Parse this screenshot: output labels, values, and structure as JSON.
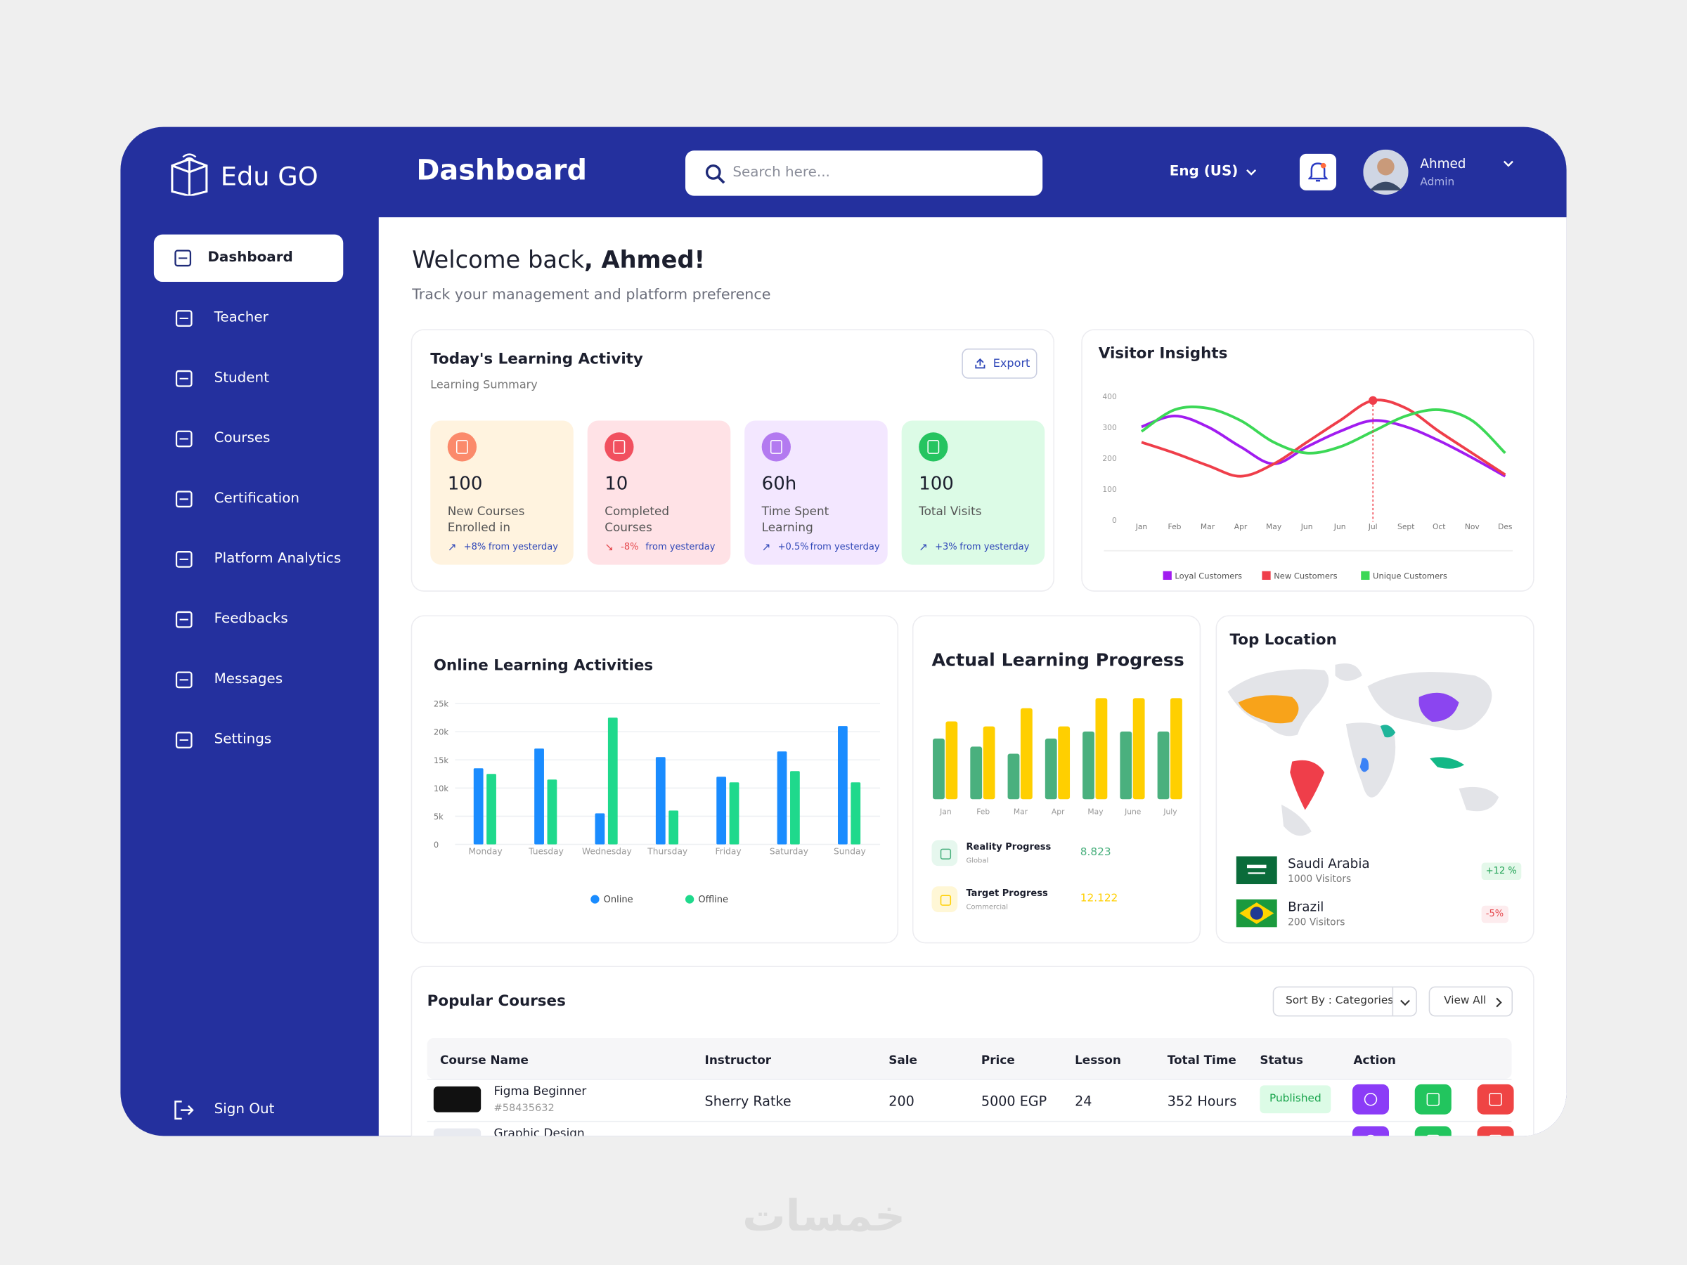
{
  "header": {
    "logo": "Edu GO",
    "page_title": "Dashboard",
    "search_placeholder": "Search here...",
    "language": "Eng (US)",
    "user": {
      "name": "Ahmed",
      "role": "Admin"
    }
  },
  "sidebar": {
    "items": [
      "Dashboard",
      "Teacher",
      "Student",
      "Courses",
      "Certification",
      "Platform Analytics",
      "Feedbacks",
      "Messages",
      "Settings"
    ],
    "sign_out": "Sign Out"
  },
  "welcome": {
    "greeting": "Welcome back",
    "name": ", Ahmed!",
    "subtitle": "Track your management and platform preference"
  },
  "learning_activity": {
    "title": "Today's Learning Activity",
    "subtitle": "Learning Summary",
    "export": "Export",
    "cards": [
      {
        "value": 100,
        "label": "New Courses Enrolled in",
        "change": "+8%",
        "note": "from yesterday"
      },
      {
        "value": 10,
        "label": "Completed Courses",
        "change": "-8%",
        "note": "from yesterday"
      },
      {
        "value": "60h",
        "label": "Time Spent Learning",
        "change": "+0.5%",
        "note": "from yesterday"
      },
      {
        "value": 100,
        "label": "Total Visits",
        "change": "+3%",
        "note": "from yesterday"
      }
    ]
  },
  "visitor_insights": {
    "type": "line",
    "title": "Visitor Insights",
    "categories": [
      "Jan",
      "Feb",
      "Mar",
      "Apr",
      "May",
      "Jun",
      "Jun",
      "Jul",
      "Sept",
      "Oct",
      "Nov",
      "Des"
    ],
    "ylim": [
      0,
      400
    ],
    "yticks": [
      0,
      100,
      200,
      300,
      400
    ],
    "series": [
      {
        "name": "Loyal Customers",
        "color": "#a11cf0",
        "values": [
          300,
          335,
          300,
          235,
          180,
          235,
          285,
          320,
          300,
          255,
          200,
          140
        ]
      },
      {
        "name": "New Customers",
        "color": "#ef3e4a",
        "values": [
          250,
          215,
          175,
          140,
          180,
          250,
          320,
          385,
          360,
          285,
          215,
          145
        ]
      },
      {
        "name": "Unique Customers",
        "color": "#3cd856",
        "values": [
          285,
          355,
          360,
          320,
          250,
          215,
          235,
          285,
          335,
          355,
          320,
          215
        ]
      }
    ]
  },
  "online_learning": {
    "type": "bar",
    "title": "Online Learning Activities",
    "categories": [
      "Monday",
      "Tuesday",
      "Wednesday",
      "Thursday",
      "Friday",
      "Saturday",
      "Sunday"
    ],
    "ylim": [
      0,
      25000
    ],
    "yticks": [
      0,
      {
        "value": 5000,
        "label": "5k"
      },
      {
        "value": 10000,
        "label": "10k"
      },
      {
        "value": 15000,
        "label": "15k"
      },
      {
        "value": 20000,
        "label": "20k"
      },
      {
        "value": 25000,
        "label": "25k"
      }
    ],
    "grid": true,
    "series": [
      {
        "name": "Online",
        "color": "#1a8cff",
        "values": [
          13500,
          17000,
          5500,
          15500,
          12000,
          16500,
          21000
        ]
      },
      {
        "name": "Offline",
        "color": "#1fd98c",
        "values": [
          12500,
          11500,
          22500,
          6000,
          11000,
          13000,
          11000
        ]
      }
    ]
  },
  "learning_progress": {
    "type": "bar",
    "title": "Actual Learning Progress",
    "categories": [
      "Jan",
      "Feb",
      "Mar",
      "Apr",
      "May",
      "June",
      "July"
    ],
    "ylim": [
      0,
      100
    ],
    "series": [
      {
        "name": "Reality Progress",
        "subtitle": "Global",
        "total": "8.823",
        "color": "#4ab07e",
        "values": [
          60,
          52,
          45,
          60,
          67,
          67,
          67
        ]
      },
      {
        "name": "Target Progress",
        "subtitle": "Commercial",
        "total": "12.122",
        "color": "#ffcf00",
        "values": [
          77,
          72,
          90,
          72,
          100,
          100,
          100
        ]
      }
    ]
  },
  "top_location": {
    "title": "Top Location",
    "countries": [
      {
        "name": "Saudi Arabia",
        "visitors": "1000 Visitors",
        "change": "+12 %"
      },
      {
        "name": "Brazil",
        "visitors": "200 Visitors",
        "change": "-5%"
      }
    ]
  },
  "popular_courses": {
    "title": "Popular Courses",
    "sort": "Sort By : Categories",
    "view_all": "View All",
    "columns": [
      "Course Name",
      "Instructor",
      "Sale",
      "Price",
      "Lesson",
      "Total Time",
      "Status",
      "Action"
    ],
    "rows": [
      {
        "name": "Figma Beginner",
        "id": "#58435632",
        "instructor": "Sherry Ratke",
        "sale": 200,
        "price": "5000 EGP",
        "lesson": 24,
        "total_time": "352 Hours",
        "status": "Published"
      },
      {
        "name": "Graphic Design"
      }
    ]
  },
  "watermark": "خمسات"
}
